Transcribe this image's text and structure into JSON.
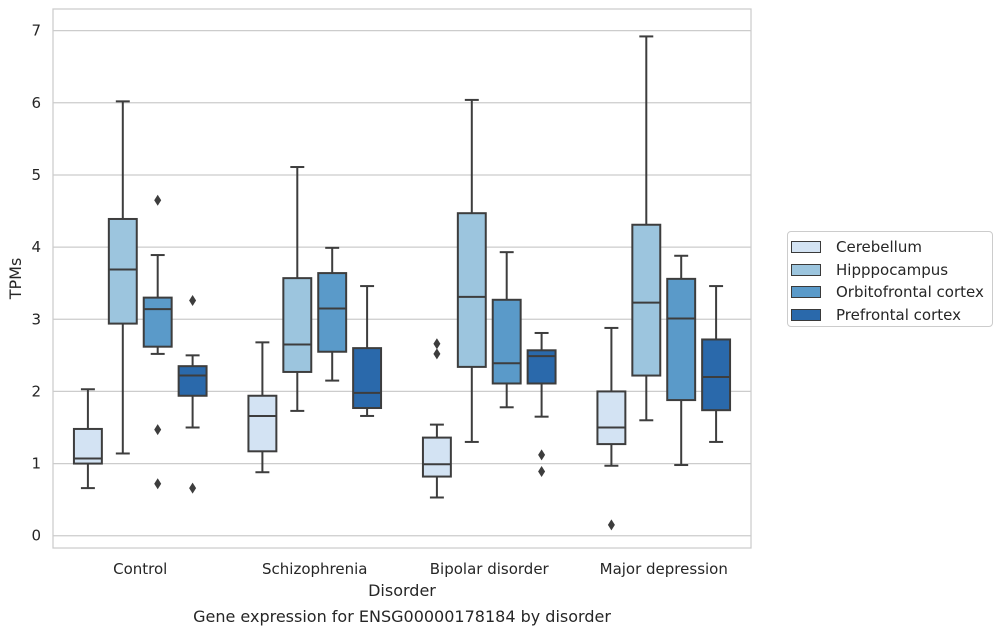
{
  "chart_data": {
    "type": "box",
    "title": "",
    "caption": "Gene expression for ENSG00000178184 by disorder",
    "xlabel": "Disorder",
    "ylabel": "TPMs",
    "ylim": [
      -0.17,
      7.3
    ],
    "yticks": [
      "0",
      "1",
      "2",
      "3",
      "4",
      "5",
      "6",
      "7"
    ],
    "grid": "horizontal",
    "legend_position": "right",
    "categories": [
      "Control",
      "Schizophrenia",
      "Bipolar disorder",
      "Major depression"
    ],
    "series": [
      {
        "name": "Cerebellum",
        "color": "#d3e3f3",
        "boxes": [
          {
            "whislo": 0.66,
            "q1": 1.0,
            "med": 1.07,
            "q3": 1.48,
            "whishi": 2.03,
            "fliers": []
          },
          {
            "whislo": 0.88,
            "q1": 1.17,
            "med": 1.66,
            "q3": 1.94,
            "whishi": 2.68,
            "fliers": []
          },
          {
            "whislo": 0.53,
            "q1": 0.82,
            "med": 0.99,
            "q3": 1.36,
            "whishi": 1.54,
            "fliers": [
              2.52,
              2.66
            ]
          },
          {
            "whislo": 0.97,
            "q1": 1.27,
            "med": 1.5,
            "q3": 2.0,
            "whishi": 2.88,
            "fliers": [
              0.15
            ]
          }
        ]
      },
      {
        "name": "Hipppocampus",
        "color": "#9cc5de",
        "boxes": [
          {
            "whislo": 1.14,
            "q1": 2.94,
            "med": 3.69,
            "q3": 4.39,
            "whishi": 6.02,
            "fliers": []
          },
          {
            "whislo": 1.73,
            "q1": 2.27,
            "med": 2.65,
            "q3": 3.57,
            "whishi": 5.11,
            "fliers": []
          },
          {
            "whislo": 1.3,
            "q1": 2.34,
            "med": 3.31,
            "q3": 4.47,
            "whishi": 6.04,
            "fliers": []
          },
          {
            "whislo": 1.6,
            "q1": 2.22,
            "med": 3.23,
            "q3": 4.31,
            "whishi": 6.92,
            "fliers": []
          }
        ]
      },
      {
        "name": "Orbitofrontal cortex",
        "color": "#5a9ac9",
        "boxes": [
          {
            "whislo": 2.52,
            "q1": 2.62,
            "med": 3.14,
            "q3": 3.3,
            "whishi": 3.89,
            "fliers": [
              4.65,
              1.47,
              0.72
            ]
          },
          {
            "whislo": 2.15,
            "q1": 2.55,
            "med": 3.15,
            "q3": 3.64,
            "whishi": 3.99,
            "fliers": []
          },
          {
            "whislo": 1.78,
            "q1": 2.11,
            "med": 2.39,
            "q3": 3.27,
            "whishi": 3.93,
            "fliers": []
          },
          {
            "whislo": 0.98,
            "q1": 1.88,
            "med": 3.01,
            "q3": 3.56,
            "whishi": 3.88,
            "fliers": []
          }
        ]
      },
      {
        "name": "Prefrontal cortex",
        "color": "#2a69ab",
        "boxes": [
          {
            "whislo": 1.5,
            "q1": 1.94,
            "med": 2.22,
            "q3": 2.35,
            "whishi": 2.5,
            "fliers": [
              3.26,
              0.66
            ]
          },
          {
            "whislo": 1.66,
            "q1": 1.77,
            "med": 1.98,
            "q3": 2.6,
            "whishi": 3.46,
            "fliers": []
          },
          {
            "whislo": 1.65,
            "q1": 2.11,
            "med": 2.49,
            "q3": 2.57,
            "whishi": 2.81,
            "fliers": [
              1.12,
              0.89
            ]
          },
          {
            "whislo": 1.3,
            "q1": 1.74,
            "med": 2.2,
            "q3": 2.72,
            "whishi": 3.46,
            "fliers": []
          }
        ]
      }
    ]
  }
}
